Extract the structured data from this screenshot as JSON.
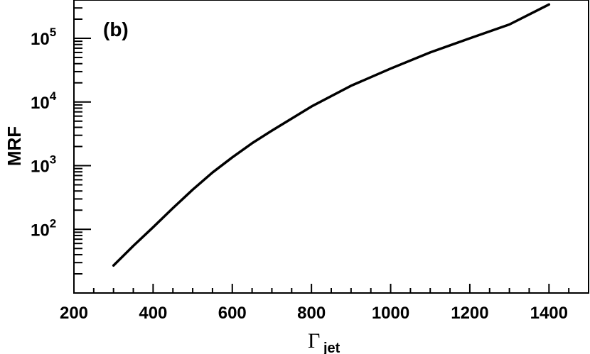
{
  "chart_data": {
    "type": "line",
    "panel_label": "(b)",
    "title": "",
    "xlabel": {
      "symbol": "Γ",
      "subscript": "jet"
    },
    "ylabel": "MRF",
    "xlim": [
      200,
      1500
    ],
    "ylim": [
      10,
      400000
    ],
    "yscale": "log",
    "grid": false,
    "x_ticks": [
      200,
      400,
      600,
      800,
      1000,
      1200,
      1400
    ],
    "x_tick_labels": [
      "200",
      "400",
      "600",
      "800",
      "1000",
      "1200",
      "1400"
    ],
    "y_ticks": [
      100,
      1000,
      10000,
      100000
    ],
    "y_tick_labels": [
      {
        "base": "10",
        "exp": "2"
      },
      {
        "base": "10",
        "exp": "3"
      },
      {
        "base": "10",
        "exp": "4"
      },
      {
        "base": "10",
        "exp": "5"
      }
    ],
    "series": [
      {
        "x": [
          300,
          350,
          400,
          450,
          500,
          550,
          600,
          650,
          700,
          800,
          900,
          1000,
          1100,
          1200,
          1300,
          1400
        ],
        "y": [
          27,
          55,
          108,
          215,
          420,
          780,
          1350,
          2250,
          3550,
          8500,
          18000,
          33500,
          60000,
          100000,
          165000,
          340000
        ]
      }
    ]
  }
}
